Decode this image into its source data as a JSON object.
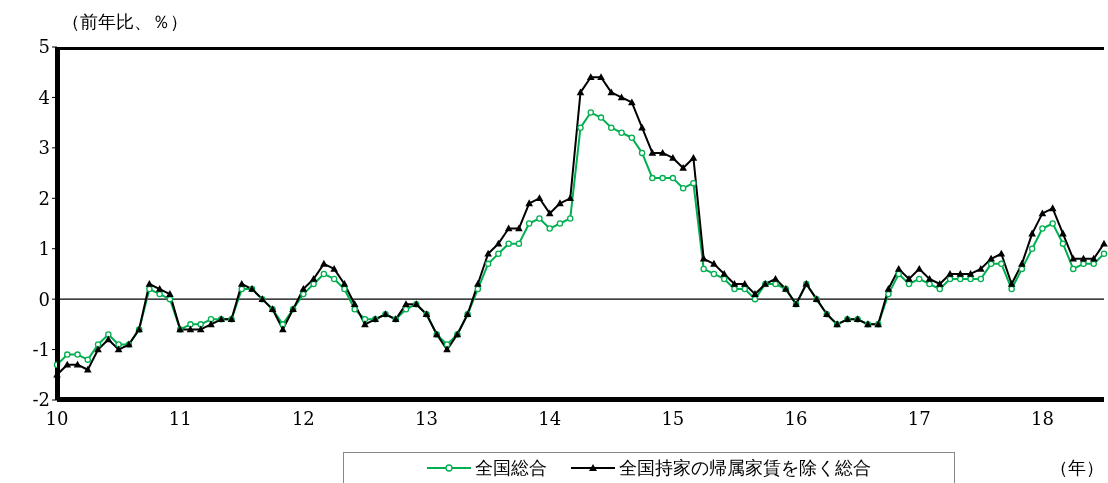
{
  "chart_data": {
    "type": "line",
    "ylabel": "（前年比、％）",
    "xlabel": "（年）",
    "categories": [
      "10",
      null,
      null,
      null,
      null,
      null,
      null,
      null,
      null,
      null,
      null,
      null,
      "11",
      null,
      null,
      null,
      null,
      null,
      null,
      null,
      null,
      null,
      null,
      null,
      "12",
      null,
      null,
      null,
      null,
      null,
      null,
      null,
      null,
      null,
      null,
      null,
      "13",
      null,
      null,
      null,
      null,
      null,
      null,
      null,
      null,
      null,
      null,
      null,
      "14",
      null,
      null,
      null,
      null,
      null,
      null,
      null,
      null,
      null,
      null,
      null,
      "15",
      null,
      null,
      null,
      null,
      null,
      null,
      null,
      null,
      null,
      null,
      null,
      "16",
      null,
      null,
      null,
      null,
      null,
      null,
      null,
      null,
      null,
      null,
      null,
      "17",
      null,
      null,
      null,
      null,
      null,
      null,
      null,
      null,
      null,
      null,
      null,
      "18",
      null,
      null,
      null,
      null,
      null,
      null
    ],
    "series": [
      {
        "name": "全国総合",
        "color": "#00b050",
        "marker": "circle",
        "values": [
          -1.3,
          -1.1,
          -1.1,
          -1.2,
          -0.9,
          -0.7,
          -0.9,
          -0.9,
          -0.6,
          0.2,
          0.1,
          0.0,
          -0.6,
          -0.5,
          -0.5,
          -0.4,
          -0.4,
          -0.4,
          0.2,
          0.2,
          0.0,
          -0.2,
          -0.5,
          -0.2,
          0.1,
          0.3,
          0.5,
          0.4,
          0.2,
          -0.2,
          -0.4,
          -0.4,
          -0.3,
          -0.4,
          -0.2,
          -0.1,
          -0.3,
          -0.7,
          -0.9,
          -0.7,
          -0.3,
          0.2,
          0.7,
          0.9,
          1.1,
          1.1,
          1.5,
          1.6,
          1.4,
          1.5,
          1.6,
          3.4,
          3.7,
          3.6,
          3.4,
          3.3,
          3.2,
          2.9,
          2.4,
          2.4,
          2.4,
          2.2,
          2.3,
          0.6,
          0.5,
          0.4,
          0.2,
          0.2,
          0.0,
          0.3,
          0.3,
          0.2,
          -0.1,
          0.3,
          0.0,
          -0.3,
          -0.5,
          -0.4,
          -0.4,
          -0.5,
          -0.5,
          0.1,
          0.5,
          0.3,
          0.4,
          0.3,
          0.2,
          0.4,
          0.4,
          0.4,
          0.4,
          0.7,
          0.7,
          0.2,
          0.6,
          1.0,
          1.4,
          1.5,
          1.1,
          0.6,
          0.7,
          0.7,
          0.9
        ]
      },
      {
        "name": "全国持家の帰属家賃を除く総合",
        "color": "#000000",
        "marker": "triangle",
        "values": [
          -1.5,
          -1.3,
          -1.3,
          -1.4,
          -1.0,
          -0.8,
          -1.0,
          -0.9,
          -0.6,
          0.3,
          0.2,
          0.1,
          -0.6,
          -0.6,
          -0.6,
          -0.5,
          -0.4,
          -0.4,
          0.3,
          0.2,
          0.0,
          -0.2,
          -0.6,
          -0.2,
          0.2,
          0.4,
          0.7,
          0.6,
          0.3,
          -0.1,
          -0.5,
          -0.4,
          -0.3,
          -0.4,
          -0.1,
          -0.1,
          -0.3,
          -0.7,
          -1.0,
          -0.7,
          -0.3,
          0.3,
          0.9,
          1.1,
          1.4,
          1.4,
          1.9,
          2.0,
          1.7,
          1.9,
          2.0,
          4.1,
          4.4,
          4.4,
          4.1,
          4.0,
          3.9,
          3.4,
          2.9,
          2.9,
          2.8,
          2.6,
          2.8,
          0.8,
          0.7,
          0.5,
          0.3,
          0.3,
          0.1,
          0.3,
          0.4,
          0.2,
          -0.1,
          0.3,
          0.0,
          -0.3,
          -0.5,
          -0.4,
          -0.4,
          -0.5,
          -0.5,
          0.2,
          0.6,
          0.4,
          0.6,
          0.4,
          0.3,
          0.5,
          0.5,
          0.5,
          0.6,
          0.8,
          0.9,
          0.3,
          0.7,
          1.3,
          1.7,
          1.8,
          1.3,
          0.8,
          0.8,
          0.8,
          1.1
        ]
      }
    ],
    "ylim": [
      -2,
      5
    ],
    "yticks": [
      -2,
      -1,
      0,
      1,
      2,
      3,
      4,
      5
    ],
    "ref_lines": [
      {
        "axis": "y",
        "value": 0,
        "color": "#000000"
      }
    ],
    "grid": false,
    "legend": "bottom"
  }
}
